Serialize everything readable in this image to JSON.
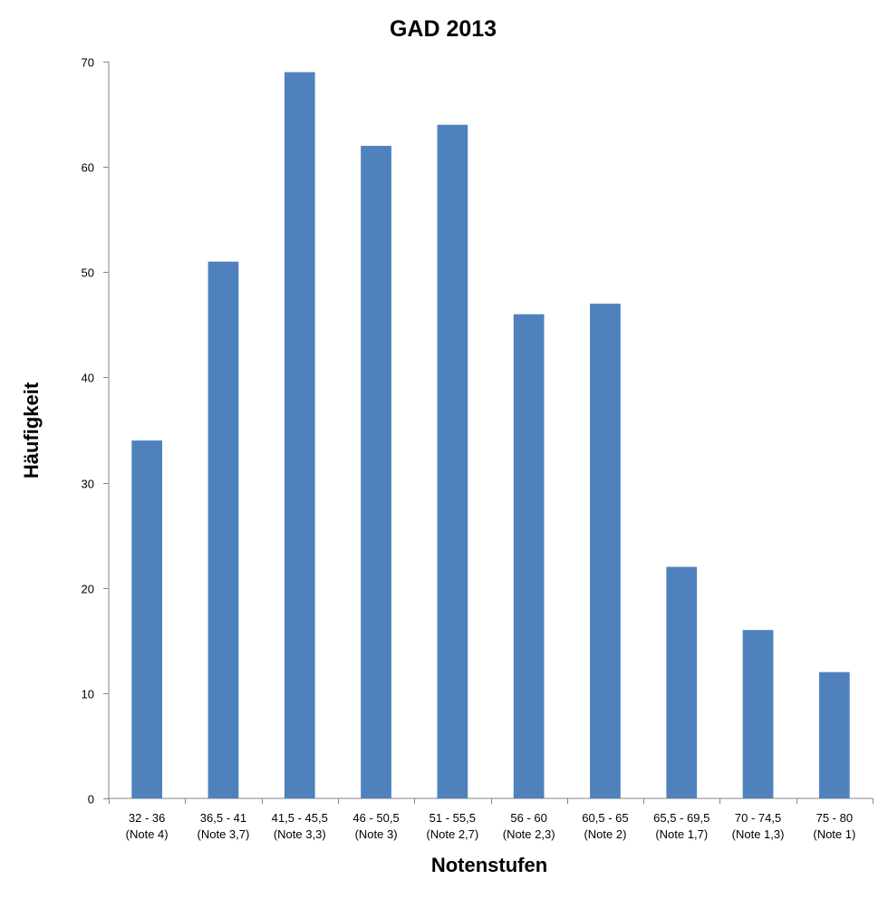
{
  "chart_data": {
    "type": "bar",
    "title": "GAD 2013",
    "xlabel": "Notenstufen",
    "ylabel": "Häufigkeit",
    "categories": [
      [
        "32 - 36",
        "(Note 4)"
      ],
      [
        "36,5 - 41",
        "(Note 3,7)"
      ],
      [
        "41,5 - 45,5",
        "(Note 3,3)"
      ],
      [
        "46 - 50,5",
        "(Note 3)"
      ],
      [
        "51 - 55,5",
        "(Note 2,7)"
      ],
      [
        "56 - 60",
        "(Note 2,3)"
      ],
      [
        "60,5 - 65",
        "(Note 2)"
      ],
      [
        "65,5 - 69,5",
        "(Note 1,7)"
      ],
      [
        "70 - 74,5",
        "(Note 1,3)"
      ],
      [
        "75 - 80",
        "(Note 1)"
      ]
    ],
    "values": [
      34,
      51,
      69,
      62,
      64,
      46,
      47,
      22,
      16,
      12
    ],
    "ylim": [
      0,
      70
    ],
    "yticks": [
      0,
      10,
      20,
      30,
      40,
      50,
      60,
      70
    ],
    "grid": false,
    "legend": "none",
    "bar_color": "#4F81BD",
    "axis_color": "#868686"
  }
}
